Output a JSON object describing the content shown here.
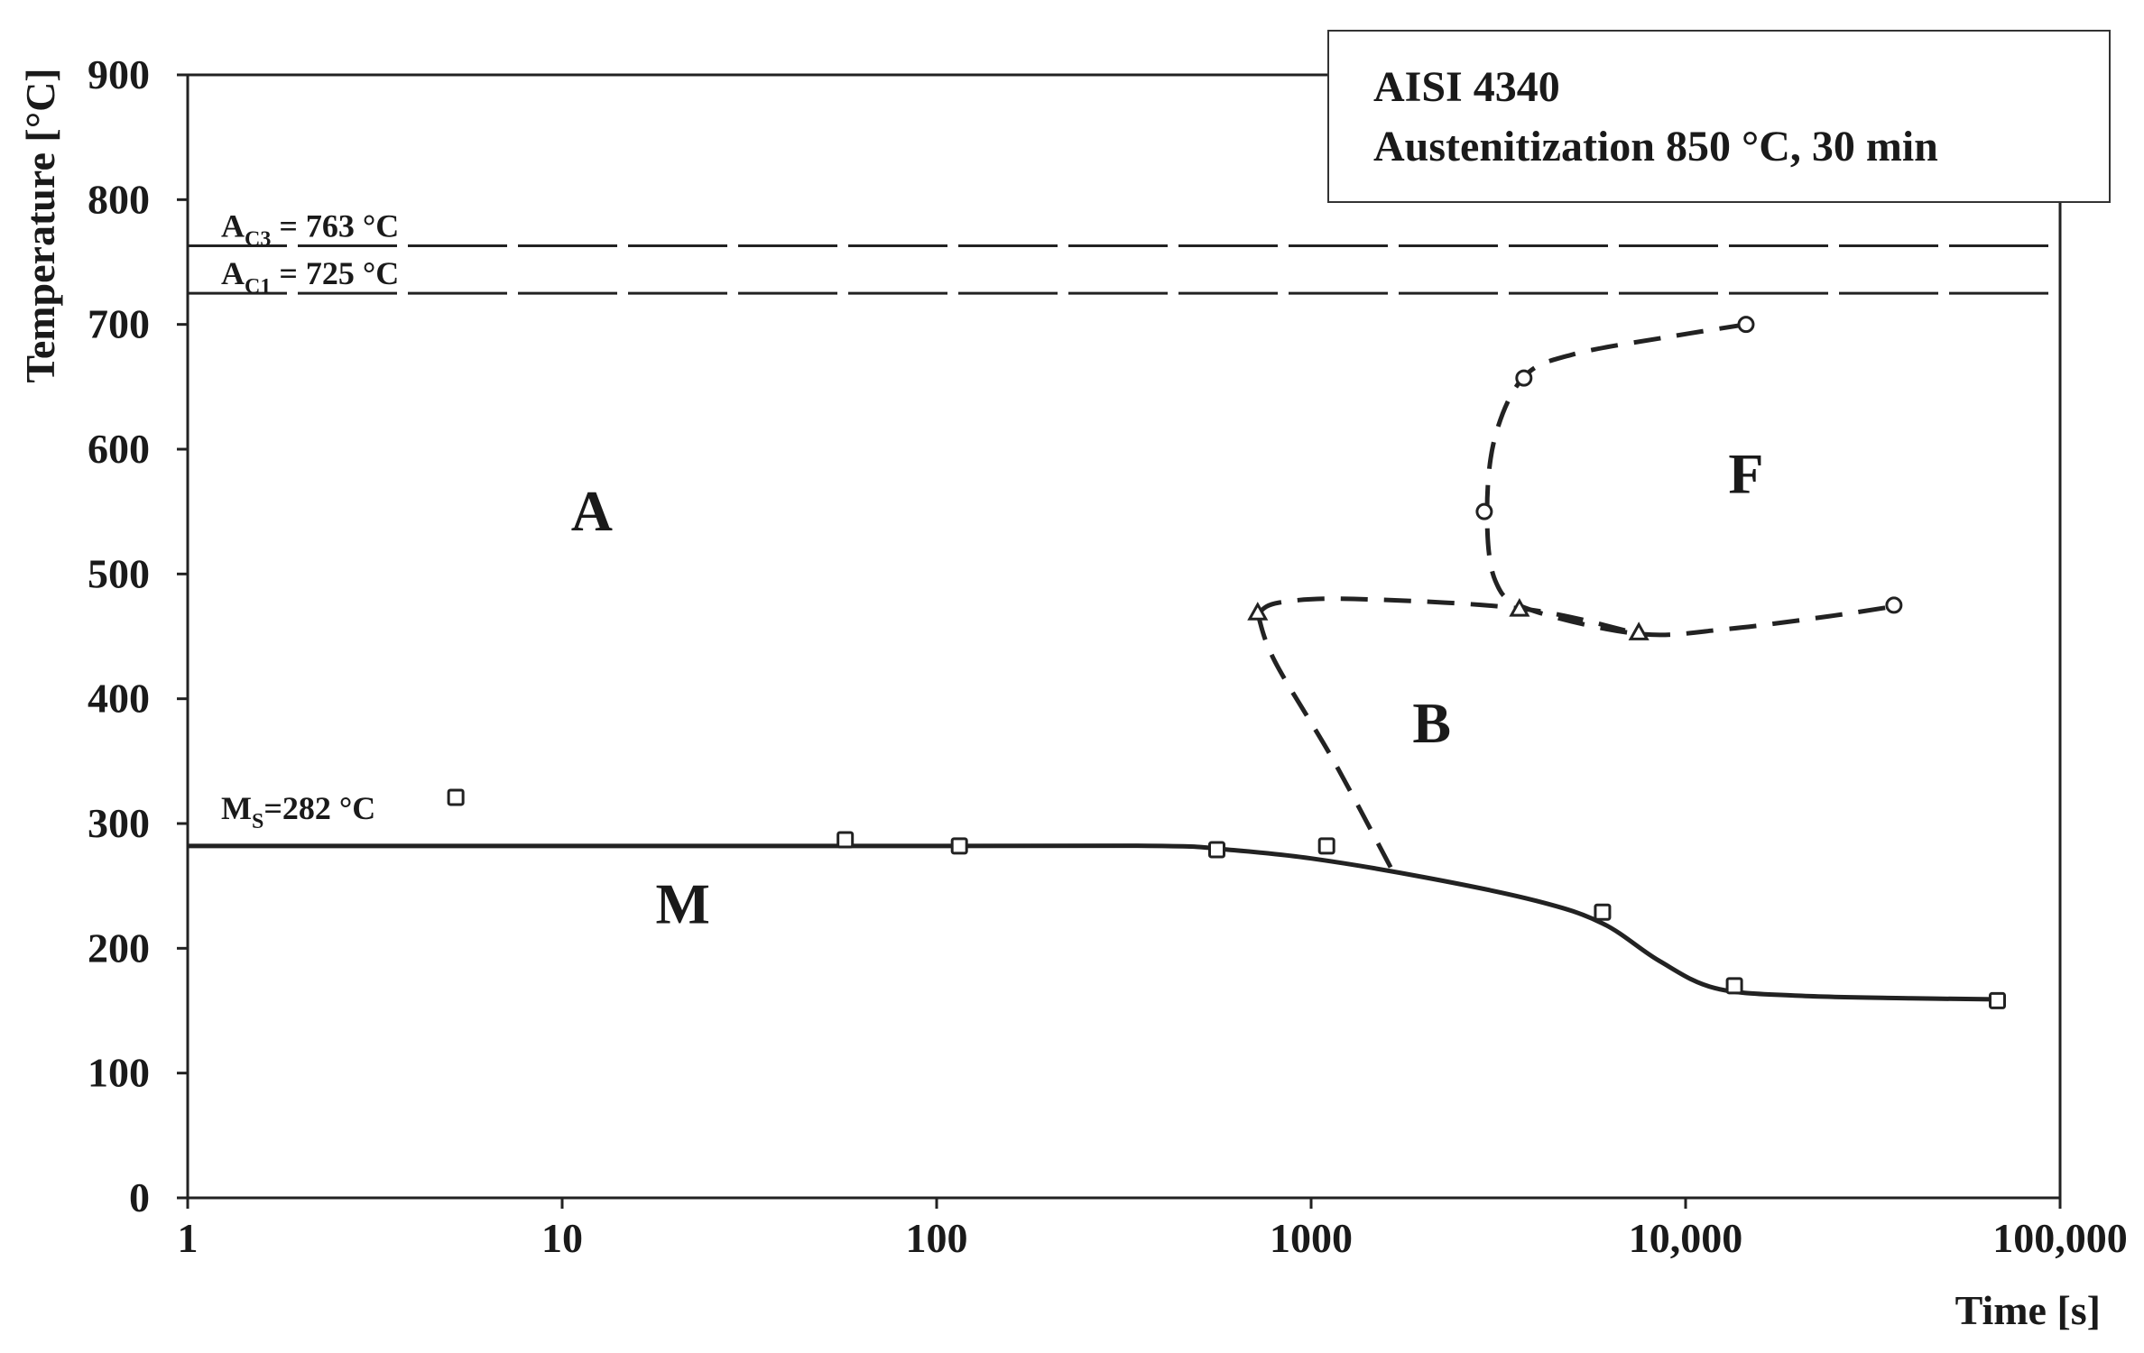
{
  "chart_data": {
    "type": "line",
    "title": "",
    "xlabel": "Time [s]",
    "ylabel": "Temperature [°C]",
    "x_scale": "log",
    "xlim": [
      1,
      100000
    ],
    "ylim": [
      0,
      900
    ],
    "x_ticks": [
      1,
      10,
      100,
      1000,
      10000,
      100000
    ],
    "x_tick_labels": [
      "1",
      "10",
      "100",
      "1000",
      "10,000",
      "100,000"
    ],
    "y_ticks": [
      0,
      100,
      200,
      300,
      400,
      500,
      600,
      700,
      800,
      900
    ],
    "y_tick_labels": [
      "0",
      "100",
      "200",
      "300",
      "400",
      "500",
      "600",
      "700",
      "800",
      "900"
    ],
    "grid": false,
    "info_box": {
      "line1": "AISI 4340",
      "line2": "Austenitization 850 °C, 30 min",
      "placement": "top-right"
    },
    "critical_temperatures": [
      {
        "label": "A",
        "sub": "C3",
        "value_label": " = 763 °C",
        "value": 763
      },
      {
        "label": "A",
        "sub": "C1",
        "value_label": " = 725 °C",
        "value": 725
      },
      {
        "label": "M",
        "sub": "S",
        "value_label": "=282 °C",
        "value": 282
      }
    ],
    "regions": [
      {
        "label": "A",
        "x": 12,
        "y": 535
      },
      {
        "label": "F",
        "x": 14500,
        "y": 565
      },
      {
        "label": "B",
        "x": 2100,
        "y": 365
      },
      {
        "label": "M",
        "x": 21,
        "y": 220
      }
    ],
    "curves": [
      {
        "style": "solid",
        "marker": "square",
        "path": [
          [
            1,
            282
          ],
          [
            100,
            282
          ],
          [
            400,
            282
          ],
          [
            600,
            279
          ],
          [
            1000,
            272
          ],
          [
            2000,
            257
          ],
          [
            4000,
            238
          ],
          [
            6000,
            220
          ],
          [
            8500,
            190
          ],
          [
            12000,
            168
          ],
          [
            20000,
            162
          ],
          [
            40000,
            160
          ],
          [
            70000,
            159
          ]
        ],
        "points": [
          [
            5.2,
            321
          ],
          [
            57,
            287
          ],
          [
            115,
            282
          ],
          [
            560,
            279
          ],
          [
            1100,
            282
          ],
          [
            6000,
            229
          ],
          [
            13500,
            170
          ],
          [
            68000,
            158
          ]
        ]
      },
      {
        "style": "dashed",
        "marker": "circle",
        "path": [
          [
            14500,
            700
          ],
          [
            9000,
            690
          ],
          [
            5000,
            676
          ],
          [
            3700,
            658
          ],
          [
            3100,
            610
          ],
          [
            2950,
            550
          ],
          [
            3100,
            495
          ],
          [
            3800,
            472
          ],
          [
            7500,
            452
          ],
          [
            13000,
            456
          ],
          [
            24000,
            466
          ],
          [
            36000,
            474
          ]
        ],
        "points": [
          [
            14500,
            700
          ],
          [
            3700,
            657
          ],
          [
            2900,
            550
          ],
          [
            36000,
            475
          ]
        ]
      },
      {
        "style": "dashed",
        "marker": "triangle",
        "path": [
          [
            720,
            468
          ],
          [
            820,
            477
          ],
          [
            1300,
            480
          ],
          [
            3700,
            472
          ],
          [
            7500,
            452
          ]
        ],
        "points": [
          [
            720,
            469
          ],
          [
            3600,
            472
          ],
          [
            7500,
            453
          ]
        ]
      },
      {
        "style": "dashed",
        "marker": "none",
        "path": [
          [
            720,
            468
          ],
          [
            800,
            430
          ],
          [
            1150,
            350
          ],
          [
            1650,
            262
          ]
        ],
        "points": []
      }
    ]
  }
}
